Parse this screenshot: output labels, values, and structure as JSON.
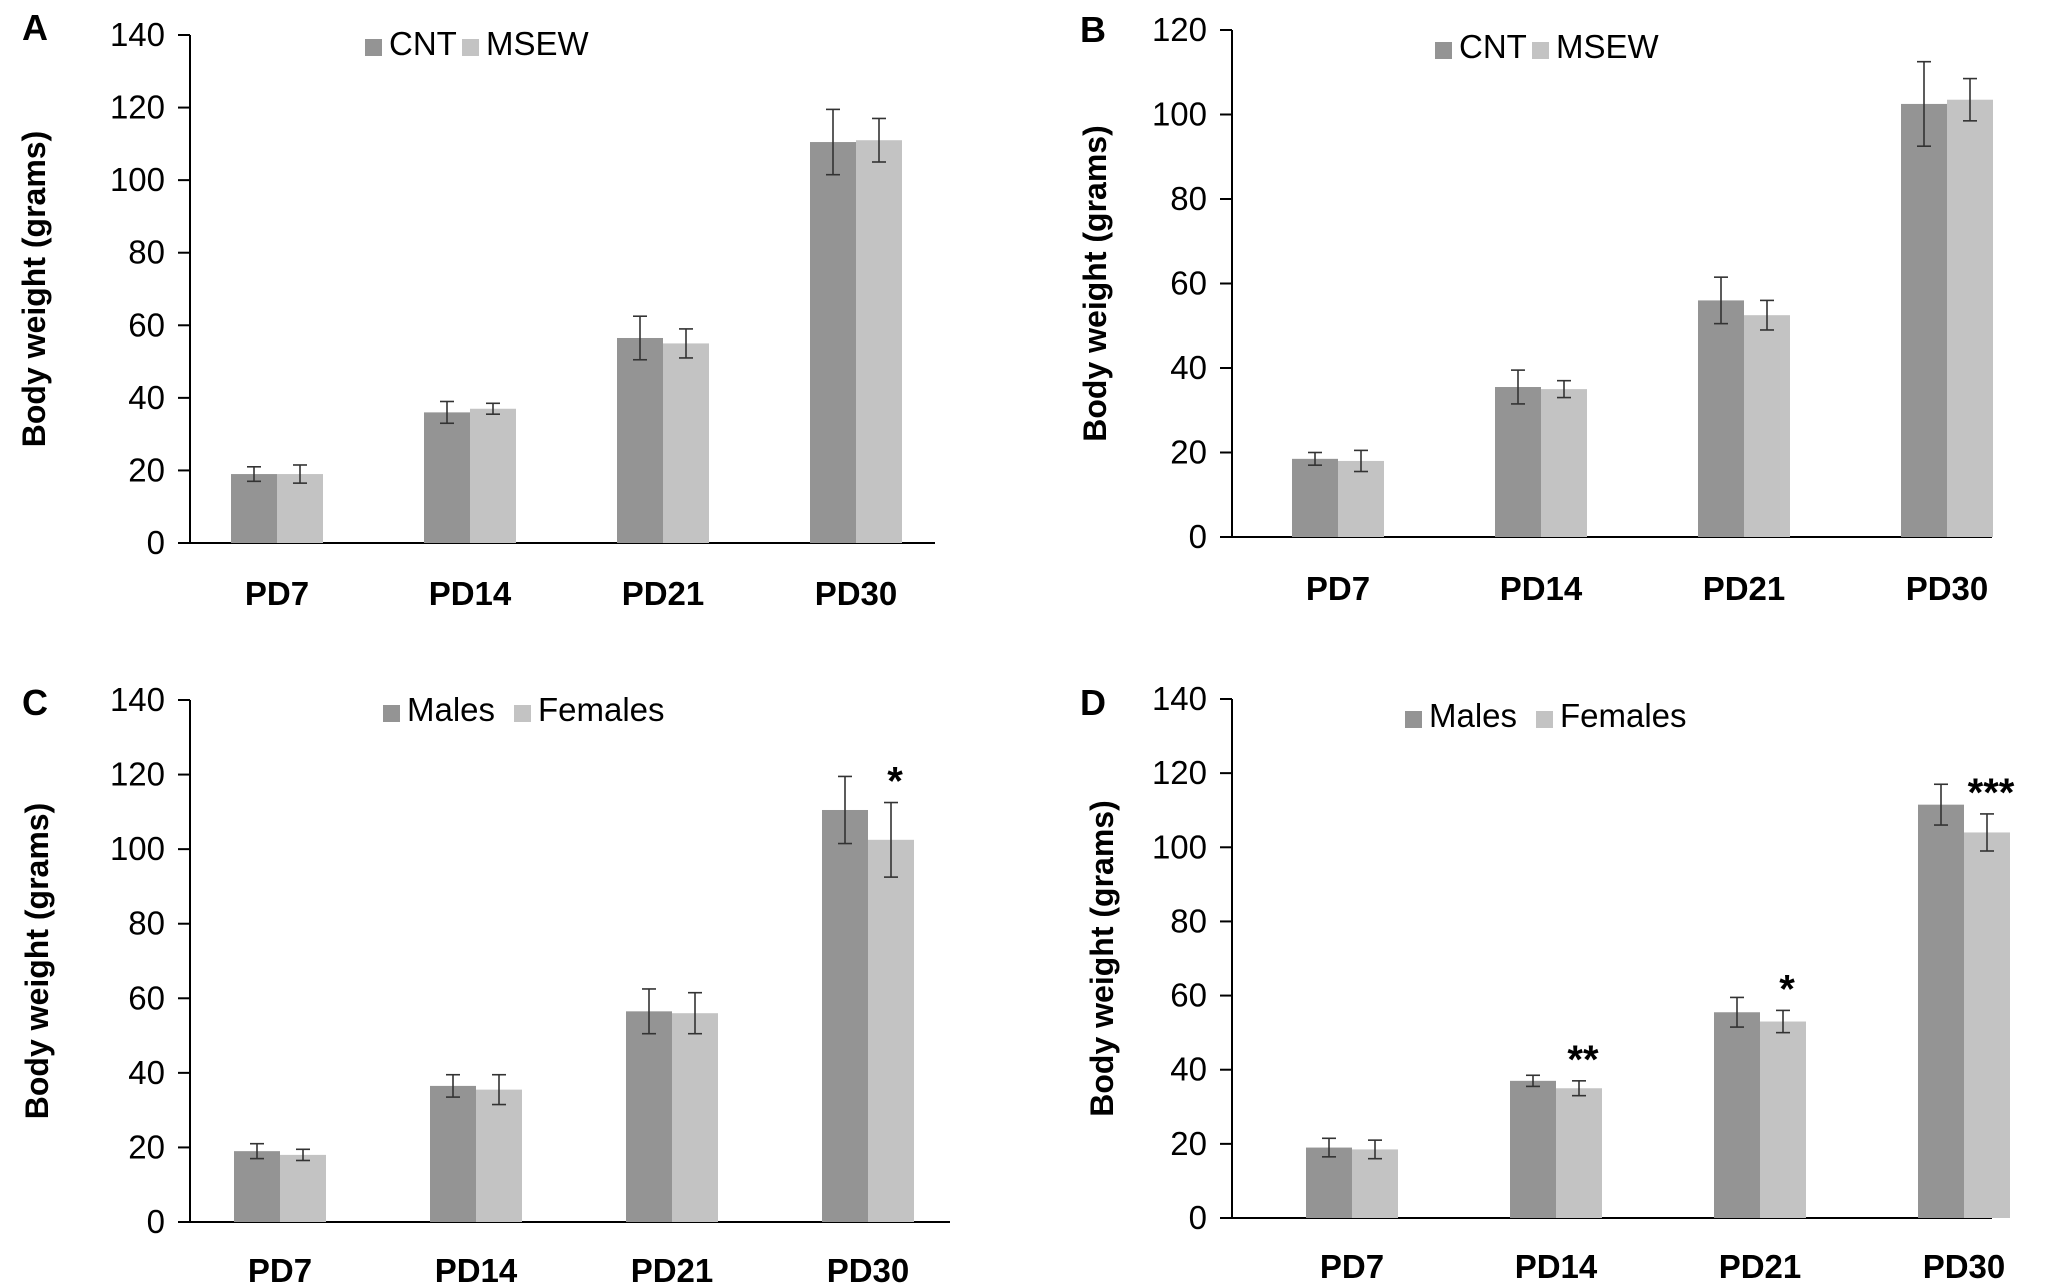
{
  "chart_data": [
    {
      "panel": "A",
      "type": "bar",
      "categories": [
        "PD7",
        "PD14",
        "PD21",
        "PD30"
      ],
      "ylabel": "Body weight (grams)",
      "ylim": [
        0,
        140
      ],
      "yticks": [
        0,
        20,
        40,
        60,
        80,
        100,
        120,
        140
      ],
      "legend_position": "top-center",
      "series": [
        {
          "name": "CNT",
          "color": "#949494",
          "values": [
            19,
            36,
            56.5,
            110.5
          ],
          "errors": [
            2,
            3,
            6,
            9
          ]
        },
        {
          "name": "MSEW",
          "color": "#c3c3c3",
          "values": [
            19,
            37,
            55,
            111
          ],
          "errors": [
            2.5,
            1.5,
            4,
            6
          ]
        }
      ],
      "annotations": []
    },
    {
      "panel": "B",
      "type": "bar",
      "categories": [
        "PD7",
        "PD14",
        "PD21",
        "PD30"
      ],
      "ylabel": "Body weight (grams)",
      "ylim": [
        0,
        120
      ],
      "yticks": [
        0,
        20,
        40,
        60,
        80,
        100,
        120
      ],
      "legend_position": "top-center",
      "series": [
        {
          "name": "CNT",
          "color": "#949494",
          "values": [
            18.5,
            35.5,
            56,
            102.5
          ],
          "errors": [
            1.5,
            4,
            5.5,
            10
          ]
        },
        {
          "name": "MSEW",
          "color": "#c3c3c3",
          "values": [
            18,
            35,
            52.5,
            103.5
          ],
          "errors": [
            2.5,
            2,
            3.5,
            5
          ]
        }
      ],
      "annotations": []
    },
    {
      "panel": "C",
      "type": "bar",
      "categories": [
        "PD7",
        "PD14",
        "PD21",
        "PD30"
      ],
      "ylabel": "Body weight (grams)",
      "ylim": [
        0,
        140
      ],
      "yticks": [
        0,
        20,
        40,
        60,
        80,
        100,
        120,
        140
      ],
      "legend_position": "top-center",
      "series": [
        {
          "name": "Males",
          "color": "#949494",
          "values": [
            19,
            36.5,
            56.5,
            110.5
          ],
          "errors": [
            2,
            3,
            6,
            9
          ]
        },
        {
          "name": "Females",
          "color": "#c3c3c3",
          "values": [
            18,
            35.5,
            56,
            102.5
          ],
          "errors": [
            1.5,
            4,
            5.5,
            10
          ]
        }
      ],
      "annotations": [
        {
          "category": "PD30",
          "series": "Females",
          "text": "*"
        }
      ]
    },
    {
      "panel": "D",
      "type": "bar",
      "categories": [
        "PD7",
        "PD14",
        "PD21",
        "PD30"
      ],
      "ylabel": "Body weight (grams)",
      "ylim": [
        0,
        140
      ],
      "yticks": [
        0,
        20,
        40,
        60,
        80,
        100,
        120,
        140
      ],
      "legend_position": "top-center",
      "series": [
        {
          "name": "Males",
          "color": "#949494",
          "values": [
            19,
            37,
            55.5,
            111.5
          ],
          "errors": [
            2.5,
            1.5,
            4,
            5.5
          ]
        },
        {
          "name": "Females",
          "color": "#c3c3c3",
          "values": [
            18.5,
            35,
            53,
            104
          ],
          "errors": [
            2.5,
            2,
            3,
            5
          ]
        }
      ],
      "annotations": [
        {
          "category": "PD14",
          "series": "Females",
          "text": "**"
        },
        {
          "category": "PD21",
          "series": "Females",
          "text": "*"
        },
        {
          "category": "PD30",
          "series": "Females",
          "text": "***"
        }
      ]
    }
  ]
}
